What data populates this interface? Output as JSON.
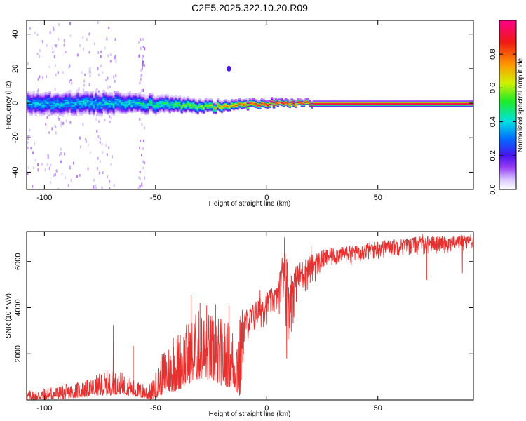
{
  "title": "C2E5.2025.322.10.20.R09",
  "chart_data": [
    {
      "type": "heatmap",
      "xlabel": "Height of straight line (km)",
      "ylabel": "Frequency (Hz)",
      "xlim": [
        -108,
        93
      ],
      "ylim": [
        -50,
        48
      ],
      "xticks": [
        -100,
        -50,
        0,
        50
      ],
      "yticks": [
        -40,
        -20,
        0,
        20,
        40
      ],
      "colorbar": {
        "label": "Normalized spectral amplitude",
        "range": [
          0,
          1
        ],
        "ticks": [
          "0.0",
          "0.2",
          "0.4",
          "0.6",
          "0.8"
        ],
        "tick_values": [
          0,
          0.2,
          0.4,
          0.6,
          0.8
        ]
      },
      "band_center_hz": [
        [
          -105,
          0
        ],
        [
          -80,
          0
        ],
        [
          -60,
          0
        ],
        [
          -40,
          -1
        ],
        [
          -25,
          -2
        ],
        [
          -15,
          -1
        ],
        [
          0,
          0
        ],
        [
          10,
          0
        ],
        [
          20,
          0
        ],
        [
          93,
          0
        ]
      ],
      "band_halfwidth_hz": [
        [
          -105,
          5
        ],
        [
          -75,
          5
        ],
        [
          -55,
          4
        ],
        [
          -35,
          3
        ],
        [
          -15,
          2
        ],
        [
          0,
          1.5
        ],
        [
          20,
          1.2
        ],
        [
          93,
          1.2
        ]
      ],
      "band_peak_amplitude": [
        [
          -105,
          0.35
        ],
        [
          -60,
          0.4
        ],
        [
          -30,
          0.55
        ],
        [
          -15,
          0.75
        ],
        [
          0,
          0.95
        ],
        [
          93,
          0.98
        ]
      ],
      "isolated_spot": {
        "x": -17,
        "y": 20,
        "amplitude": 0.2
      }
    },
    {
      "type": "line",
      "xlabel": "Height of straight line (km)",
      "ylabel": "SNR (10 * v/v)",
      "xlim": [
        -108,
        93
      ],
      "ylim": [
        0,
        7300
      ],
      "xticks": [
        -100,
        -50,
        0,
        50
      ],
      "yticks": [
        2000,
        4000,
        6000
      ],
      "color": "#e8302f",
      "envelope": {
        "x": [
          -108,
          -100,
          -90,
          -80,
          -72,
          -65,
          -58,
          -52,
          -46,
          -40,
          -35,
          -30,
          -25,
          -20,
          -15,
          -12,
          -10,
          -8,
          -5,
          0,
          5,
          8,
          10,
          13,
          15,
          20,
          25,
          30,
          40,
          50,
          60,
          70,
          80,
          93
        ],
        "low": [
          0,
          0,
          50,
          150,
          200,
          250,
          100,
          0,
          300,
          400,
          700,
          900,
          800,
          600,
          500,
          0,
          2500,
          2300,
          2700,
          3200,
          3600,
          3800,
          1800,
          4000,
          4200,
          4800,
          5400,
          5700,
          5900,
          6000,
          6200,
          6200,
          6300,
          6500
        ],
        "high": [
          400,
          550,
          700,
          900,
          1300,
          1200,
          800,
          700,
          2300,
          3000,
          3500,
          4000,
          3800,
          3600,
          3300,
          3800,
          3900,
          4000,
          4300,
          4700,
          5000,
          7000,
          5600,
          5800,
          6000,
          6300,
          6500,
          6600,
          6700,
          6900,
          7000,
          7100,
          7100,
          7200
        ]
      },
      "spikes": [
        [
          -69,
          3250
        ],
        [
          -60,
          2350
        ],
        [
          -42,
          2700
        ],
        [
          -34,
          4550
        ],
        [
          -30,
          4200
        ],
        [
          -27,
          4100
        ],
        [
          -23,
          4150
        ],
        [
          -17,
          4100
        ],
        [
          -11,
          3900
        ],
        [
          -3,
          4750
        ],
        [
          8,
          7050
        ],
        [
          20,
          6700
        ],
        [
          70,
          7200
        ]
      ],
      "dips": [
        [
          9,
          1800
        ],
        [
          72,
          5200
        ],
        [
          88,
          5500
        ]
      ]
    }
  ]
}
